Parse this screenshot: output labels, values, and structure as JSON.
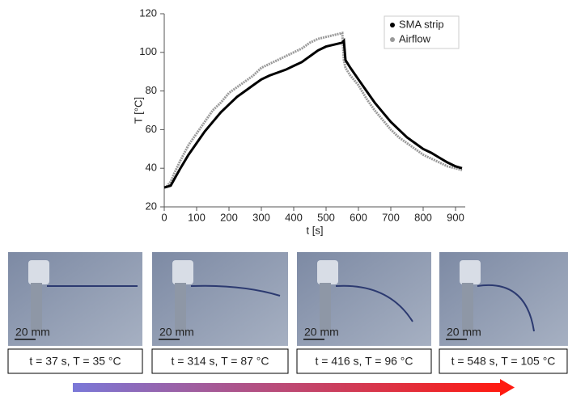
{
  "chart_data": {
    "type": "line",
    "xlabel": "t [s]",
    "ylabel": "T [°C]",
    "xlim": [
      0,
      930
    ],
    "ylim": [
      20,
      120
    ],
    "xticks": [
      0,
      100,
      200,
      300,
      400,
      500,
      600,
      700,
      800,
      900
    ],
    "yticks": [
      20,
      40,
      60,
      80,
      100,
      120
    ],
    "legend": "top-right",
    "x": [
      0,
      10,
      20,
      30,
      50,
      75,
      100,
      125,
      150,
      175,
      200,
      225,
      250,
      275,
      300,
      325,
      350,
      375,
      400,
      425,
      450,
      475,
      500,
      525,
      550,
      555,
      560,
      575,
      600,
      625,
      650,
      675,
      700,
      725,
      750,
      775,
      800,
      825,
      850,
      875,
      900,
      920
    ],
    "series": [
      {
        "name": "SMA strip",
        "color": "#000000",
        "values": [
          30,
          30.5,
          31,
          34,
          40,
          47,
          53,
          59,
          64,
          69,
          73,
          77,
          80,
          83,
          86,
          88,
          89.5,
          91,
          93,
          95,
          98,
          101,
          103,
          104,
          105,
          106,
          96,
          92,
          86,
          80,
          74,
          69,
          64,
          60,
          56,
          53,
          50,
          48,
          45.5,
          43,
          41,
          40
        ]
      },
      {
        "name": "Airflow",
        "color": "#9a9a9a",
        "values": [
          30,
          31,
          33,
          37,
          44,
          52,
          58,
          64,
          70,
          74,
          79,
          82,
          85,
          88,
          92,
          94,
          96,
          98,
          100,
          102,
          105,
          107,
          108,
          109,
          110,
          96,
          92,
          88,
          83,
          76,
          70,
          65,
          60,
          56,
          53,
          50,
          47,
          45,
          43,
          41,
          40,
          39
        ]
      }
    ]
  },
  "panels": [
    {
      "scale": "20 mm",
      "caption": "t = 37 s, T = 35 °C"
    },
    {
      "scale": "20 mm",
      "caption": "t = 314 s, T = 87 °C"
    },
    {
      "scale": "20 mm",
      "caption": "t = 416 s, T = 96 °C"
    },
    {
      "scale": "20 mm",
      "caption": "t = 548 s, T = 105 °C"
    }
  ]
}
